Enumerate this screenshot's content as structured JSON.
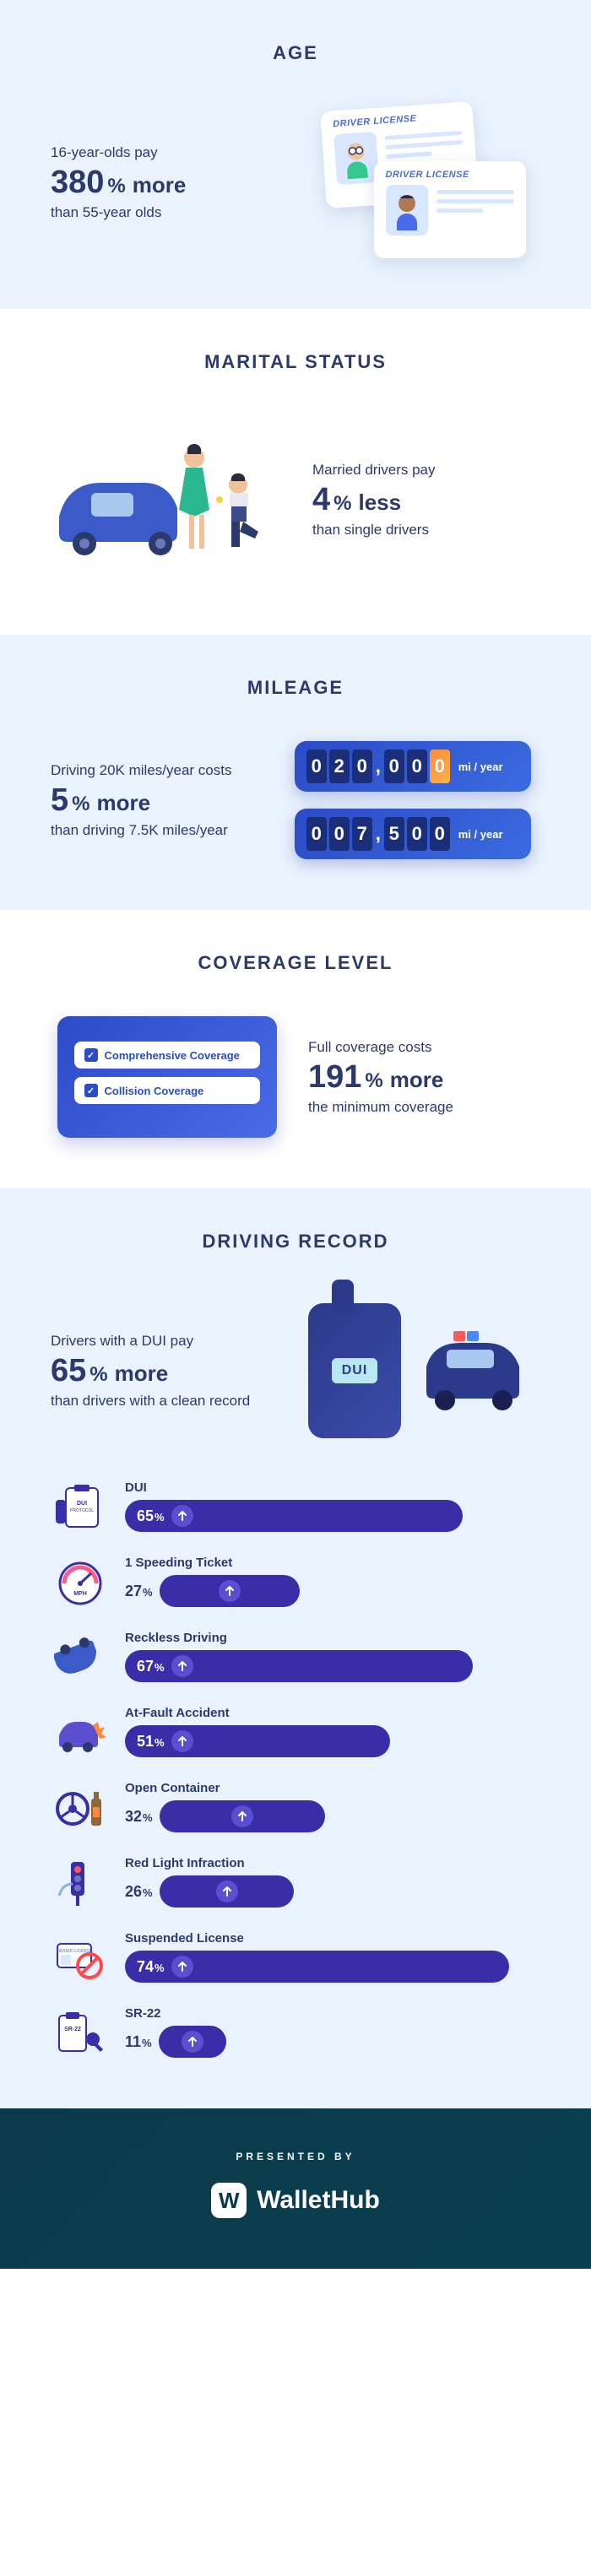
{
  "palette": {
    "heading": "#2b3a6b",
    "bg_light": "#eaf3fd",
    "bg_white": "#ffffff",
    "bar_fill": "#3a2ea8",
    "bar_arrow_inside": "#5b4fd0",
    "accent_blue": "#2b4bc7",
    "footer_bg": "#0a3a4a"
  },
  "sections": {
    "age": {
      "title": "AGE",
      "lead": "16-year-olds pay",
      "value": "380",
      "word": "more",
      "sub": "than 55-year olds",
      "card_label": "DRIVER LICENSE"
    },
    "marital": {
      "title": "MARITAL STATUS",
      "lead": "Married drivers pay",
      "value": "4",
      "word": "less",
      "sub": "than single drivers"
    },
    "mileage": {
      "title": "MILEAGE",
      "lead": "Driving 20K miles/year costs",
      "value": "5",
      "word": "more",
      "sub": "than driving 7.5K miles/year",
      "odo_unit": "mi / year",
      "odometers": [
        {
          "digits": [
            "0",
            "2",
            "0",
            ",",
            "0",
            "0",
            "0"
          ],
          "highlight_index": 6
        },
        {
          "digits": [
            "0",
            "0",
            "7",
            ",",
            "5",
            "0",
            "0"
          ],
          "highlight_index": -1
        }
      ]
    },
    "coverage": {
      "title": "COVERAGE LEVEL",
      "lead": "Full coverage costs",
      "value": "191",
      "word": "more",
      "sub": "the minimum coverage",
      "options": [
        "Comprehensive Coverage",
        "Collision Coverage"
      ]
    },
    "driving_record": {
      "title": "DRIVING RECORD",
      "lead": "Drivers with a DUI pay",
      "value": "65",
      "word": "more",
      "sub": "than drivers with a clean record",
      "device_label": "DUI",
      "bars": [
        {
          "label": "DUI",
          "value": 65,
          "icon": "dui-protocol",
          "icon_text": "DUI\nPROTOCOL"
        },
        {
          "label": "1 Speeding Ticket",
          "value": 27,
          "icon": "speedometer",
          "icon_text": "MPH"
        },
        {
          "label": "Reckless Driving",
          "value": 67,
          "icon": "flipped-car"
        },
        {
          "label": "At-Fault Accident",
          "value": 51,
          "icon": "crash-car"
        },
        {
          "label": "Open Container",
          "value": 32,
          "icon": "wheel-bottle"
        },
        {
          "label": "Red Light Infraction",
          "value": 26,
          "icon": "traffic-light"
        },
        {
          "label": "Suspended License",
          "value": 74,
          "icon": "no-license",
          "icon_text": "DRIVER LICENSE"
        },
        {
          "label": "SR-22",
          "value": 11,
          "icon": "clipboard-keys",
          "icon_text": "SR-22"
        }
      ],
      "bar_max": 80,
      "threshold_for_inside_label": 35
    }
  },
  "footer": {
    "presented": "PRESENTED BY",
    "brand_letter": "W",
    "brand_name": "WalletHub"
  }
}
